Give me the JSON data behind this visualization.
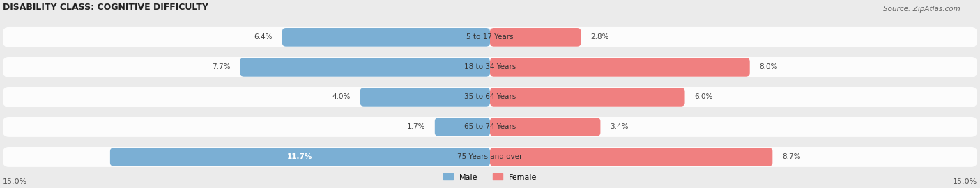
{
  "title": "DISABILITY CLASS: COGNITIVE DIFFICULTY",
  "source": "Source: ZipAtlas.com",
  "categories": [
    "5 to 17 Years",
    "18 to 34 Years",
    "35 to 64 Years",
    "65 to 74 Years",
    "75 Years and over"
  ],
  "male_values": [
    6.4,
    7.7,
    4.0,
    1.7,
    11.7
  ],
  "female_values": [
    2.8,
    8.0,
    6.0,
    3.4,
    8.7
  ],
  "max_val": 15.0,
  "male_color": "#7bafd4",
  "female_color": "#f08080",
  "male_label": "Male",
  "female_label": "Female",
  "bg_color": "#ebebeb",
  "title_color": "#222222",
  "axis_label_color": "#555555"
}
